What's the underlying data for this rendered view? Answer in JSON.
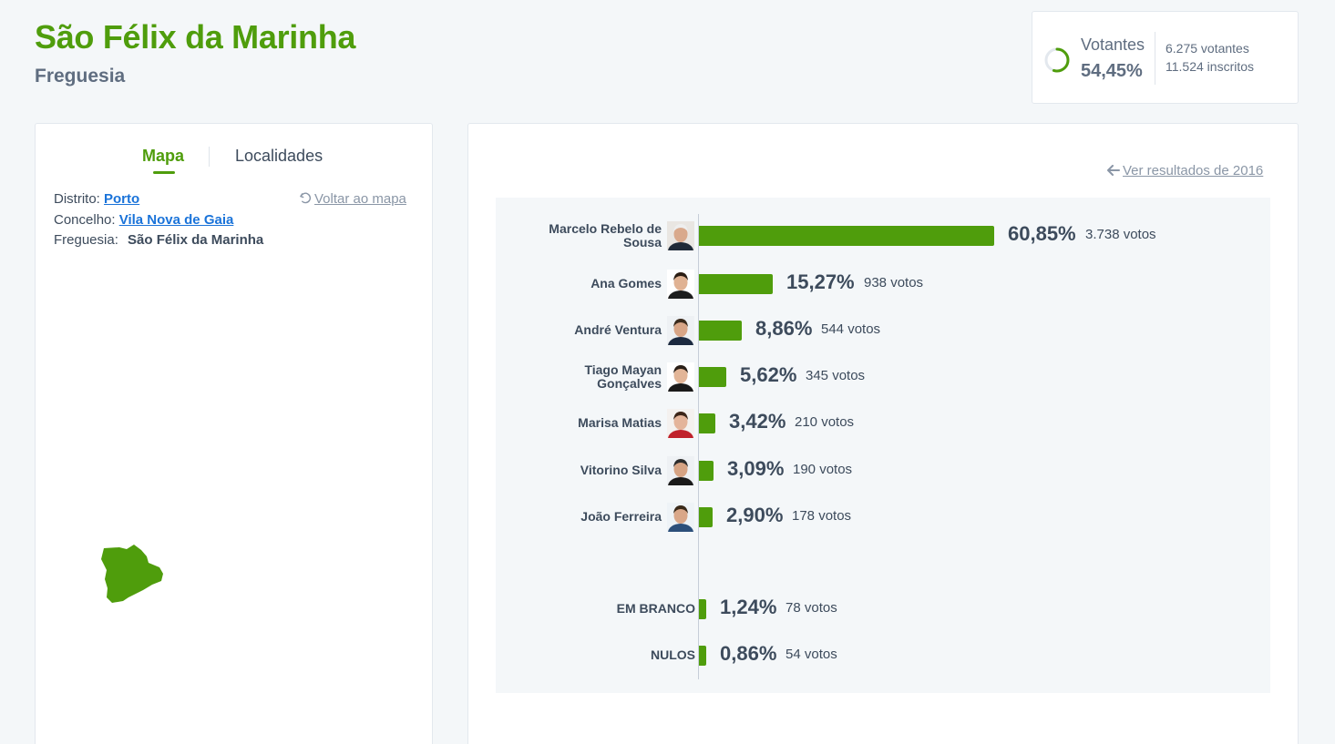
{
  "header": {
    "title": "São Félix da Marinha",
    "subtitle": "Freguesia"
  },
  "turnout": {
    "label": "Votantes",
    "percent": "54,45%",
    "percent_value": 54.45,
    "voters": "6.275 votantes",
    "registered": "11.524 inscritos"
  },
  "left_panel": {
    "tabs": [
      {
        "label": "Mapa",
        "active": true
      },
      {
        "label": "Localidades",
        "active": false
      }
    ],
    "distrito_label": "Distrito:",
    "distrito_value": "Porto",
    "concelho_label": "Concelho:",
    "concelho_value": "Vila Nova de Gaia",
    "freguesia_label": "Freguesia:",
    "freguesia_value": "São Félix da Marinha",
    "back_link": "Voltar ao mapa"
  },
  "right_panel": {
    "prev_link": "Ver resultados de 2016"
  },
  "colors": {
    "accent": "#4f9d0c",
    "link": "#1a73d9",
    "text": "#3d4b5c",
    "muted": "#8a96a6"
  },
  "chart_data": {
    "type": "bar",
    "orientation": "horizontal",
    "title": "",
    "xlabel": "",
    "ylabel": "",
    "xlim": [
      0,
      100
    ],
    "grid": false,
    "legend": "none",
    "categories": [
      "Marcelo Rebelo de Sousa",
      "Ana Gomes",
      "André Ventura",
      "Tiago Mayan Gonçalves",
      "Marisa Matias",
      "Vitorino Silva",
      "João Ferreira",
      "EM BRANCO",
      "NULOS"
    ],
    "values": [
      60.85,
      15.27,
      8.86,
      5.62,
      3.42,
      3.09,
      2.9,
      1.24,
      0.86
    ],
    "votes": [
      3738,
      938,
      544,
      345,
      210,
      190,
      178,
      78,
      54
    ],
    "rows": [
      {
        "name": "Marcelo Rebelo de Sousa",
        "pct_label": "60,85%",
        "votes_label": "3.738 votos",
        "value": 60.85,
        "photo": true
      },
      {
        "name": "Ana Gomes",
        "pct_label": "15,27%",
        "votes_label": "938 votos",
        "value": 15.27,
        "photo": true
      },
      {
        "name": "André Ventura",
        "pct_label": "8,86%",
        "votes_label": "544 votos",
        "value": 8.86,
        "photo": true
      },
      {
        "name": "Tiago Mayan Gonçalves",
        "pct_label": "5,62%",
        "votes_label": "345 votos",
        "value": 5.62,
        "photo": true
      },
      {
        "name": "Marisa Matias",
        "pct_label": "3,42%",
        "votes_label": "210 votos",
        "value": 3.42,
        "photo": true
      },
      {
        "name": "Vitorino Silva",
        "pct_label": "3,09%",
        "votes_label": "190 votos",
        "value": 3.09,
        "photo": true
      },
      {
        "name": "João Ferreira",
        "pct_label": "2,90%",
        "votes_label": "178 votos",
        "value": 2.9,
        "photo": true
      },
      {
        "name": "EM BRANCO",
        "pct_label": "1,24%",
        "votes_label": "78 votos",
        "value": 1.24,
        "photo": false
      },
      {
        "name": "NULOS",
        "pct_label": "0,86%",
        "votes_label": "54 votos",
        "value": 0.86,
        "photo": false
      }
    ]
  }
}
